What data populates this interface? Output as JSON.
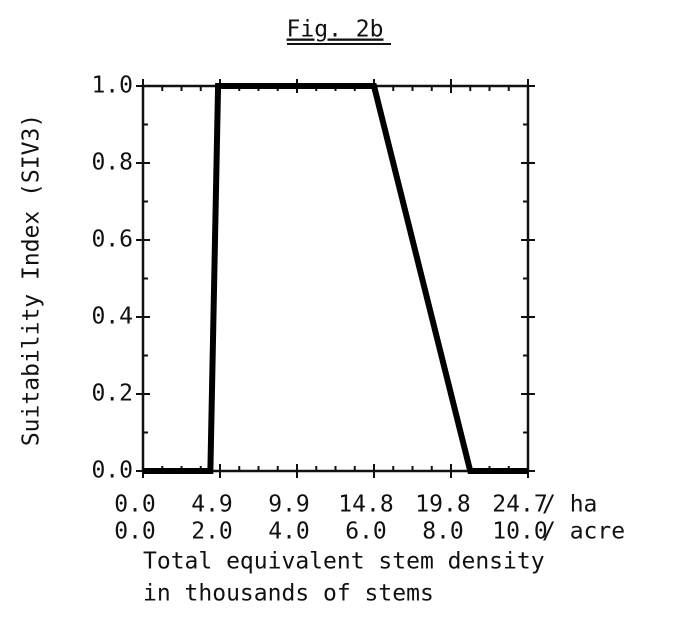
{
  "chart_data": {
    "type": "line",
    "title": "Fig. 2b",
    "y_label": "Suitability Index (SIV3)",
    "x_label": [
      "Total equivalent stem density",
      "in thousands of stems"
    ],
    "x_units": [
      "/ ha",
      "/ acre"
    ],
    "x": [
      0,
      1.75,
      1.95,
      6.0,
      8.5,
      10
    ],
    "series": [
      {
        "color": "#000000",
        "values": [
          0,
          0,
          1,
          1,
          0,
          0
        ]
      }
    ],
    "xlim": [
      0,
      10
    ],
    "xticks": [
      {
        "value": 0,
        "label": "0.0"
      },
      {
        "value": 2,
        "label": "2.0"
      },
      {
        "value": 4,
        "label": "4.0"
      },
      {
        "value": 6,
        "label": "6.0"
      },
      {
        "value": 8,
        "label": "8.0"
      },
      {
        "value": 10,
        "label": "10.0"
      }
    ],
    "xticks_ha": [
      {
        "value": 0,
        "label": "0.0"
      },
      {
        "value": 2,
        "label": "4.9"
      },
      {
        "value": 4,
        "label": "9.9"
      },
      {
        "value": 6,
        "label": "14.8"
      },
      {
        "value": 8,
        "label": "19.8"
      },
      {
        "value": 10,
        "label": "24.7"
      }
    ],
    "ylim": [
      0,
      1
    ],
    "yticks": [
      {
        "value": 0,
        "label": "0.0"
      },
      0.2,
      0.4,
      0.6,
      0.8,
      {
        "value": 1,
        "label": "1.0"
      }
    ]
  }
}
